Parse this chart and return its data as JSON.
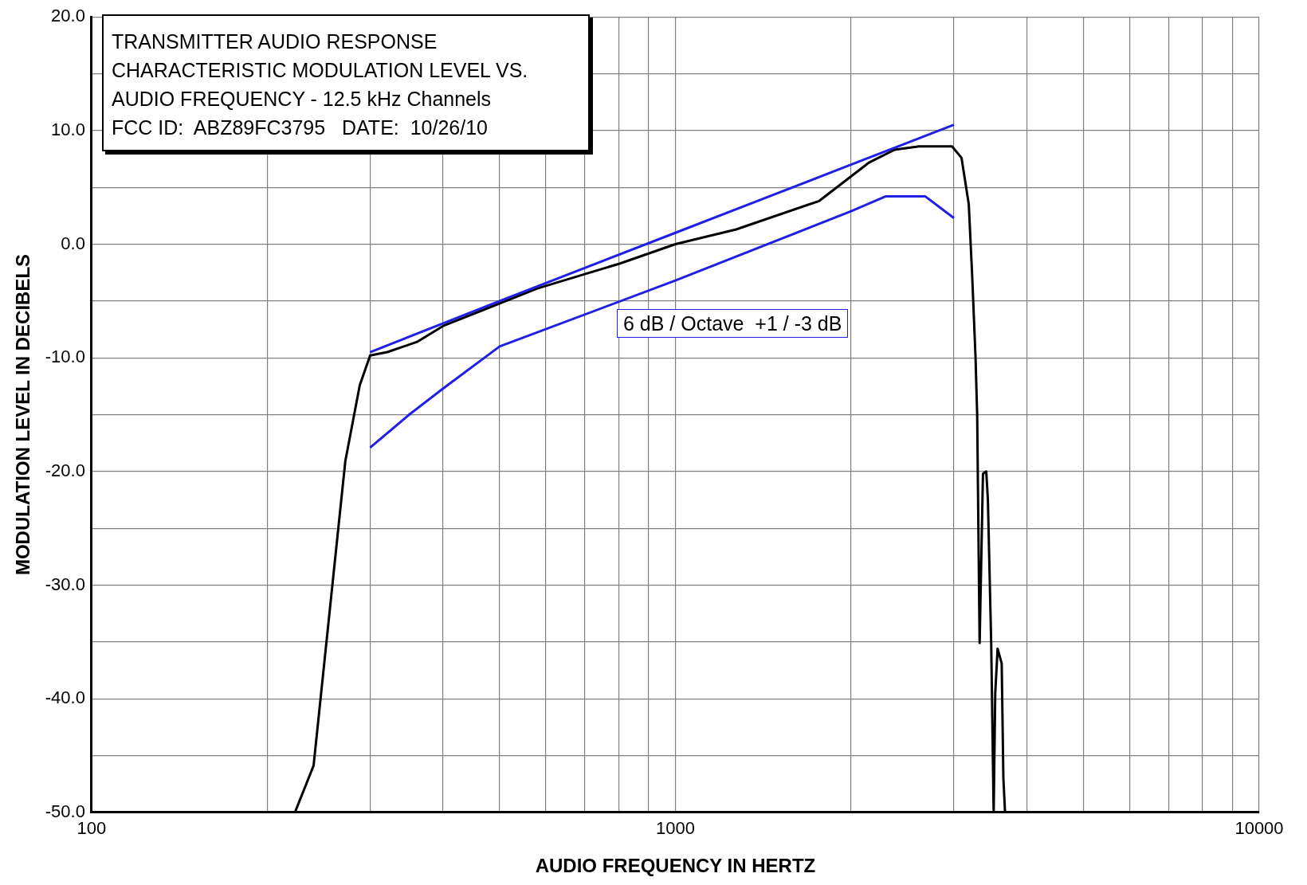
{
  "chart_data": {
    "type": "line",
    "title": "TRANSMITTER AUDIO RESPONSE",
    "subtitle": "CHARACTERISTIC MODULATION LEVEL VS. AUDIO FREQUENCY - 12.5 kHz Channels",
    "xlabel": "AUDIO FREQUENCY IN HERTZ",
    "ylabel": "MODULATION LEVEL IN DECIBELS",
    "annotations": [
      "FCC ID:  ABZ89FC3795   DATE:  10/26/10",
      "6 dB / Octave  +1 / -3 dB"
    ],
    "log": "x",
    "grid": true,
    "legend": false,
    "marker": "none",
    "line_style": "solid",
    "xlim": [
      100,
      10000
    ],
    "xticks": [
      100,
      {
        "value": 200,
        "label": null
      },
      {
        "value": 300,
        "label": null
      },
      {
        "value": 400,
        "label": null
      },
      {
        "value": 500,
        "label": null
      },
      {
        "value": 600,
        "label": null
      },
      {
        "value": 700,
        "label": null
      },
      {
        "value": 800,
        "label": null
      },
      {
        "value": 900,
        "label": null
      },
      1000,
      {
        "value": 2000,
        "label": null
      },
      {
        "value": 3000,
        "label": null
      },
      {
        "value": 4000,
        "label": null
      },
      {
        "value": 5000,
        "label": null
      },
      {
        "value": 6000,
        "label": null
      },
      {
        "value": 7000,
        "label": null
      },
      {
        "value": 8000,
        "label": null
      },
      {
        "value": 9000,
        "label": null
      },
      10000
    ],
    "ylim": [
      -50,
      20
    ],
    "yticks": [
      {
        "value": -50,
        "label": "-50.0"
      },
      {
        "value": -45,
        "label": null
      },
      {
        "value": -40,
        "label": "-40.0"
      },
      {
        "value": -35,
        "label": null
      },
      {
        "value": -30,
        "label": "-30.0"
      },
      {
        "value": -25,
        "label": null
      },
      {
        "value": -20,
        "label": "-20.0"
      },
      {
        "value": -15,
        "label": null
      },
      {
        "value": -10,
        "label": "-10.0"
      },
      {
        "value": -5,
        "label": null
      },
      {
        "value": 0,
        "label": "0.0"
      },
      {
        "value": 5,
        "label": null
      },
      {
        "value": 10,
        "label": "10.0"
      },
      {
        "value": 15,
        "label": null
      },
      {
        "value": 20,
        "label": "20.0"
      }
    ],
    "series": [
      {
        "color": "#1f1fe6",
        "x": [
          300,
          500,
          1000,
          2000,
          3000
        ],
        "values": [
          -9.5,
          -5,
          1,
          7,
          10.5
        ]
      },
      {
        "color": "#1f1fe6",
        "x": [
          300,
          350,
          400,
          500,
          1000,
          2000,
          2290,
          2680,
          3000
        ],
        "values": [
          -17.9,
          -15,
          -12.7,
          -9,
          -3.2,
          2.9,
          4.2,
          4.2,
          2.3
        ]
      },
      {
        "color": "#000000",
        "x": [
          223,
          240,
          272,
          288,
          300,
          321,
          361,
          400,
          468,
          580,
          804,
          1000,
          1271,
          1763,
          2149,
          2371,
          2616,
          2977,
          3091,
          3181,
          3224,
          3266,
          3288,
          3320,
          3364,
          3408,
          3430,
          3475,
          3509,
          3531,
          3564,
          3622,
          3646,
          3670
        ],
        "values": [
          -50,
          -45.9,
          -19.1,
          -12.4,
          -9.8,
          -9.5,
          -8.6,
          -7.2,
          -5.8,
          -3.9,
          -1.7,
          0,
          1.3,
          3.8,
          7.2,
          8.3,
          8.6,
          8.6,
          7.6,
          3.5,
          -2.8,
          -9.8,
          -15,
          -35.1,
          -20.2,
          -20,
          -22.5,
          -35.1,
          -50,
          -39.5,
          -35.6,
          -36.9,
          -47,
          -50
        ]
      }
    ]
  }
}
